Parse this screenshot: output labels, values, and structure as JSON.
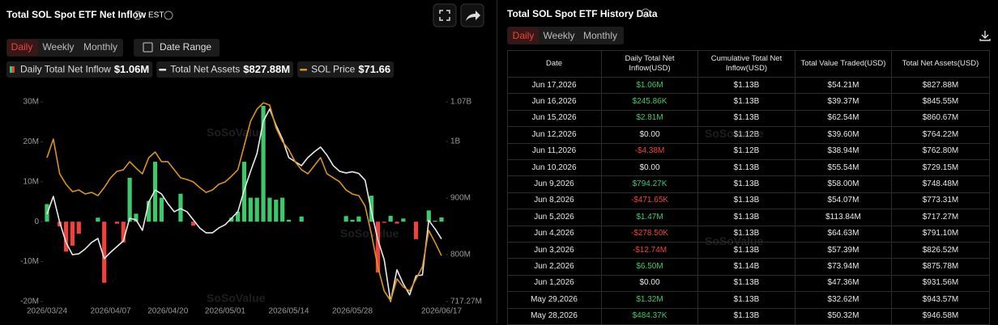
{
  "header": {
    "title": "Total SOL Spot ETF Net Inflow",
    "timezone": "EST",
    "tabs": [
      "Daily",
      "Weekly",
      "Monthly"
    ],
    "date_range": "Date Range"
  },
  "chart_data": {
    "type": "bar",
    "categories": [
      "2026/03/24",
      null,
      null,
      null,
      null,
      null,
      null,
      null,
      null,
      null,
      "2026/04/07",
      null,
      null,
      null,
      null,
      null,
      null,
      null,
      null,
      "2026/04/20",
      null,
      null,
      null,
      null,
      null,
      null,
      null,
      null,
      "2026/05/01",
      null,
      null,
      null,
      null,
      null,
      null,
      null,
      null,
      null,
      "2026/05/14",
      null,
      null,
      null,
      null,
      null,
      null,
      null,
      null,
      null,
      "2026/05/28",
      null,
      null,
      null,
      null,
      null,
      null,
      null,
      null,
      null,
      null,
      null,
      null,
      null,
      "2026/06/17"
    ],
    "series": [
      {
        "name": "Daily Total Net Inflow",
        "type": "bar",
        "color": "#3cc86b",
        "negative_color": "#f0423c",
        "current": "$1.06M",
        "values": [
          4.4,
          0,
          -1.2,
          -7.5,
          -6.0,
          -3.0,
          0,
          0,
          1.0,
          -15.3,
          0,
          -0.5,
          -5.2,
          11.0,
          2.0,
          0,
          5.2,
          15.0,
          6.0,
          0,
          0,
          7.0,
          0,
          -1.0,
          0,
          0,
          0,
          0,
          0,
          1.0,
          2.5,
          15.0,
          6.0,
          6.0,
          29.0,
          6.0,
          5.5,
          6.0,
          0.5,
          0,
          1.3,
          0,
          0,
          0,
          0,
          0,
          0,
          1.4,
          0.48437,
          1.32,
          0,
          6.5,
          -12.74,
          -0.2785,
          1.47,
          -0.47165,
          0.79427,
          0,
          -4.38,
          0,
          2.81,
          0.24586,
          1.06
        ]
      },
      {
        "name": "Total Net Assets",
        "type": "line",
        "axis": "y2",
        "color": "#e8e8e8",
        "current": "$827.88M",
        "values": [
          871.6,
          903.0,
          857.3,
          821.6,
          800.1,
          801.6,
          810.1,
          821.6,
          828.7,
          793.0,
          804.4,
          814.4,
          824.4,
          864.4,
          861.6,
          843.0,
          893.0,
          914.4,
          907.3,
          890.1,
          875.9,
          881.6,
          875.9,
          861.6,
          847.3,
          838.7,
          838.7,
          847.3,
          853.0,
          864.4,
          875.9,
          914.4,
          947.3,
          978.7,
          1035.9,
          1057.3,
          1028.7,
          1004.4,
          971.6,
          964.4,
          957.3,
          971.6,
          981.6,
          990.1,
          975.9,
          957.3,
          947.3,
          944.4,
          946.58,
          943.57,
          931.56,
          875.78,
          826.52,
          791.1,
          717.27,
          773.31,
          748.48,
          729.15,
          762.8,
          764.22,
          860.67,
          845.55,
          827.88
        ]
      },
      {
        "name": "SOL Price",
        "type": "line",
        "axis": "y3",
        "color": "#d9931c",
        "current": "$71.66",
        "values": [
          92.27,
          96.18,
          88.87,
          86.66,
          85.13,
          85.47,
          84.62,
          84.96,
          84.28,
          85.98,
          88.02,
          89.38,
          89.72,
          91.42,
          90.06,
          88.87,
          92.27,
          93.46,
          91.42,
          91.42,
          89.72,
          88.02,
          87.68,
          87.17,
          85.98,
          84.96,
          85.47,
          86.66,
          87.17,
          88.36,
          89.72,
          94.82,
          99.92,
          102.47,
          103.8,
          103.32,
          98.56,
          95.67,
          93.97,
          91.42,
          89.72,
          88.87,
          90.57,
          92.27,
          88.87,
          88.02,
          87.17,
          85.47,
          84.62,
          84.28,
          82.07,
          76.11,
          69.31,
          64.21,
          62.17,
          66.76,
          65.06,
          64.21,
          66.76,
          69.31,
          76.96,
          74.41,
          71.66
        ]
      }
    ],
    "ylim": [
      -20,
      30
    ],
    "yticks": [
      {
        "value": -20,
        "label": "-20M"
      },
      {
        "value": -10,
        "label": "-10M"
      },
      0,
      {
        "value": 10,
        "label": "10M"
      },
      {
        "value": 20,
        "label": "20M"
      },
      {
        "value": 30,
        "label": "30M"
      }
    ],
    "y2lim": [
      717.27,
      1070
    ],
    "y2ticks": [
      {
        "value": 717.27,
        "label": "717.27M"
      },
      {
        "value": 800,
        "label": "800M"
      },
      {
        "value": 900,
        "label": "900M"
      },
      {
        "value": 1000,
        "label": "1B"
      },
      {
        "value": 1070,
        "label": "1.07B"
      }
    ],
    "y3lim": [
      62,
      104
    ],
    "grid": false,
    "watermark": "SoSoValue"
  },
  "history": {
    "title": "Total SOL Spot ETF History Data",
    "tabs": [
      "Daily",
      "Weekly",
      "Monthly"
    ],
    "watermark": "SoSoValue",
    "table": {
      "columns": [
        "Date",
        "Daily Total Net Inflow(USD)",
        "Cumulative Total Net Inflow(USD)",
        "Total Value Traded(USD)",
        "Total Net Assets(USD)"
      ],
      "rows": [
        [
          "Jun 17,2026",
          "$1.06M",
          "$1.13B",
          "$54.21M",
          "$827.88M"
        ],
        [
          "Jun 16,2026",
          "$245.86K",
          "$1.13B",
          "$39.37M",
          "$845.55M"
        ],
        [
          "Jun 15,2026",
          "$2.81M",
          "$1.13B",
          "$62.54M",
          "$860.67M"
        ],
        [
          "Jun 12,2026",
          "$0.00",
          "$1.12B",
          "$39.60M",
          "$764.22M"
        ],
        [
          "Jun 11,2026",
          "-$4.38M",
          "$1.12B",
          "$38.94M",
          "$762.80M"
        ],
        [
          "Jun 10,2026",
          "$0.00",
          "$1.13B",
          "$55.54M",
          "$729.15M"
        ],
        [
          "Jun 9,2026",
          "$794.27K",
          "$1.13B",
          "$58.00M",
          "$748.48M"
        ],
        [
          "Jun 8,2026",
          "-$471.65K",
          "$1.13B",
          "$54.07M",
          "$773.31M"
        ],
        [
          "Jun 5,2026",
          "$1.47M",
          "$1.13B",
          "$113.84M",
          "$717.27M"
        ],
        [
          "Jun 4,2026",
          "-$278.50K",
          "$1.13B",
          "$64.63M",
          "$791.10M"
        ],
        [
          "Jun 3,2026",
          "-$12.74M",
          "$1.13B",
          "$57.39M",
          "$826.52M"
        ],
        [
          "Jun 2,2026",
          "$6.50M",
          "$1.14B",
          "$73.94M",
          "$875.78M"
        ],
        [
          "Jun 1,2026",
          "$0.00",
          "$1.13B",
          "$47.36M",
          "$931.56M"
        ],
        [
          "May 29,2026",
          "$1.32M",
          "$1.13B",
          "$32.62M",
          "$943.57M"
        ],
        [
          "May 28,2026",
          "$484.37K",
          "$1.13B",
          "$50.32M",
          "$946.58M"
        ]
      ]
    }
  }
}
